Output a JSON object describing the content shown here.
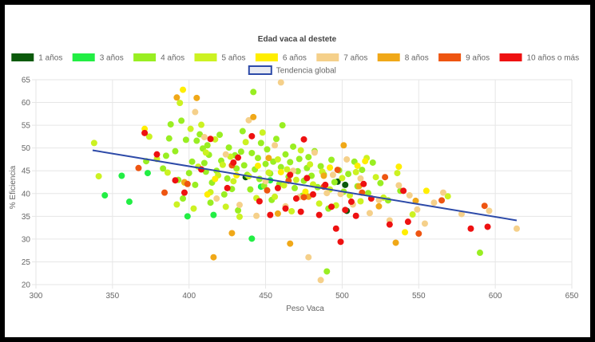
{
  "chart_data": {
    "type": "scatter",
    "title": "Edad vaca al destete",
    "xlabel": "Peso Vaca",
    "ylabel": "% Eficiencia",
    "xlim": [
      300,
      650
    ],
    "ylim": [
      20,
      65
    ],
    "xticks": [
      300,
      350,
      400,
      450,
      500,
      550,
      600,
      650
    ],
    "yticks": [
      20,
      25,
      30,
      35,
      40,
      45,
      50,
      55,
      60,
      65
    ],
    "grid": true,
    "legend_position": "top",
    "series": [
      {
        "name": "1 años",
        "color": "#0b5a0b",
        "points": [
          [
            497,
            42.6
          ],
          [
            502,
            41.9
          ],
          [
            437,
            43.6
          ],
          [
            503,
            36.2
          ]
        ]
      },
      {
        "name": "3 años",
        "color": "#22ee44",
        "points": [
          [
            345,
            39.6
          ],
          [
            356,
            43.9
          ],
          [
            361,
            38.2
          ],
          [
            373,
            44.5
          ],
          [
            399,
            35.0
          ],
          [
            416,
            35.3
          ],
          [
            441,
            30.1
          ],
          [
            447,
            41.5
          ],
          [
            453,
            42.9
          ]
        ]
      },
      {
        "name": "4 años",
        "color": "#99ee22",
        "points": [
          [
            372,
            47.1
          ],
          [
            383,
            45.5
          ],
          [
            385,
            48.3
          ],
          [
            387,
            52.1
          ],
          [
            388,
            55.2
          ],
          [
            391,
            49.3
          ],
          [
            393,
            43.0
          ],
          [
            395,
            56.0
          ],
          [
            396,
            38.9
          ],
          [
            398,
            51.8
          ],
          [
            400,
            44.5
          ],
          [
            402,
            47.0
          ],
          [
            404,
            41.9
          ],
          [
            405,
            51.6
          ],
          [
            407,
            53.0
          ],
          [
            409,
            49.9
          ],
          [
            410,
            46.7
          ],
          [
            411,
            44.8
          ],
          [
            412,
            50.6
          ],
          [
            413,
            48.5
          ],
          [
            414,
            38.0
          ],
          [
            415,
            42.4
          ],
          [
            418,
            45.0
          ],
          [
            420,
            52.9
          ],
          [
            421,
            47.2
          ],
          [
            423,
            39.8
          ],
          [
            425,
            43.3
          ],
          [
            426,
            50.1
          ],
          [
            428,
            41.0
          ],
          [
            430,
            48.4
          ],
          [
            431,
            45.5
          ],
          [
            432,
            36.3
          ],
          [
            434,
            49.2
          ],
          [
            435,
            53.7
          ],
          [
            436,
            46.2
          ],
          [
            438,
            44.1
          ],
          [
            440,
            40.9
          ],
          [
            441,
            48.9
          ],
          [
            442,
            62.3
          ],
          [
            443,
            45.3
          ],
          [
            445,
            47.8
          ],
          [
            446,
            43.2
          ],
          [
            447,
            51.1
          ],
          [
            449,
            41.7
          ],
          [
            450,
            46.5
          ],
          [
            451,
            49.7
          ],
          [
            453,
            44.4
          ],
          [
            454,
            38.6
          ],
          [
            455,
            47.0
          ],
          [
            457,
            52.0
          ],
          [
            459,
            42.1
          ],
          [
            460,
            45.8
          ],
          [
            461,
            55.0
          ],
          [
            463,
            48.6
          ],
          [
            465,
            43.7
          ],
          [
            466,
            46.9
          ],
          [
            468,
            50.3
          ],
          [
            469,
            41.2
          ],
          [
            471,
            44.9
          ],
          [
            472,
            47.6
          ],
          [
            474,
            39.5
          ],
          [
            475,
            42.8
          ],
          [
            477,
            45.6
          ],
          [
            478,
            48.0
          ],
          [
            480,
            43.9
          ],
          [
            482,
            49.3
          ],
          [
            484,
            41.4
          ],
          [
            486,
            46.0
          ],
          [
            488,
            44.2
          ],
          [
            490,
            22.9
          ],
          [
            491,
            36.7
          ],
          [
            493,
            47.4
          ],
          [
            495,
            42.5
          ],
          [
            498,
            45.1
          ],
          [
            501,
            40.4
          ],
          [
            504,
            44.3
          ],
          [
            508,
            47.0
          ],
          [
            510,
            41.6
          ],
          [
            513,
            45.2
          ],
          [
            517,
            40.1
          ],
          [
            520,
            46.8
          ],
          [
            525,
            42.3
          ],
          [
            530,
            38.5
          ],
          [
            538,
            40.6
          ],
          [
            590,
            27.0
          ]
        ]
      },
      {
        "name": "5 años",
        "color": "#ccf222",
        "points": [
          [
            338,
            51.1
          ],
          [
            341,
            43.8
          ],
          [
            374,
            52.5
          ],
          [
            379,
            47.6
          ],
          [
            386,
            44.6
          ],
          [
            392,
            37.6
          ],
          [
            394,
            59.9
          ],
          [
            397,
            42.4
          ],
          [
            401,
            54.2
          ],
          [
            403,
            36.7
          ],
          [
            406,
            45.9
          ],
          [
            408,
            55.1
          ],
          [
            411,
            49.0
          ],
          [
            414,
            40.3
          ],
          [
            417,
            51.9
          ],
          [
            419,
            44.0
          ],
          [
            422,
            46.3
          ],
          [
            424,
            37.1
          ],
          [
            427,
            48.1
          ],
          [
            429,
            42.7
          ],
          [
            433,
            34.9
          ],
          [
            437,
            51.3
          ],
          [
            439,
            43.8
          ],
          [
            444,
            39.0
          ],
          [
            448,
            53.4
          ],
          [
            452,
            44.6
          ],
          [
            456,
            39.3
          ],
          [
            458,
            47.5
          ],
          [
            462,
            41.8
          ],
          [
            464,
            45.3
          ],
          [
            467,
            36.1
          ],
          [
            470,
            43.0
          ],
          [
            473,
            49.5
          ],
          [
            476,
            39.8
          ],
          [
            479,
            46.4
          ],
          [
            481,
            42.0
          ],
          [
            485,
            37.8
          ],
          [
            487,
            44.8
          ],
          [
            492,
            40.9
          ],
          [
            496,
            37.4
          ],
          [
            500,
            43.4
          ],
          [
            505,
            39.6
          ],
          [
            509,
            44.7
          ],
          [
            512,
            38.3
          ],
          [
            516,
            47.8
          ],
          [
            522,
            43.6
          ],
          [
            527,
            39.1
          ],
          [
            536,
            44.5
          ],
          [
            546,
            35.4
          ],
          [
            569,
            39.4
          ]
        ]
      },
      {
        "name": "6 años",
        "color": "#ffee00",
        "points": [
          [
            371,
            54.2
          ],
          [
            396,
            62.8
          ],
          [
            412,
            39.8
          ],
          [
            417,
            43.2
          ],
          [
            431,
            44.0
          ],
          [
            445,
            46.1
          ],
          [
            460,
            44.7
          ],
          [
            476,
            40.4
          ],
          [
            492,
            45.7
          ],
          [
            510,
            46.1
          ],
          [
            515,
            47.1
          ],
          [
            537,
            45.9
          ],
          [
            541,
            31.5
          ],
          [
            555,
            40.6
          ]
        ]
      },
      {
        "name": "7 años",
        "color": "#f5d08a",
        "points": [
          [
            404,
            57.9
          ],
          [
            410,
            52.4
          ],
          [
            418,
            38.9
          ],
          [
            424,
            48.6
          ],
          [
            433,
            37.5
          ],
          [
            439,
            56.1
          ],
          [
            444,
            35.1
          ],
          [
            450,
            42.7
          ],
          [
            456,
            50.6
          ],
          [
            460,
            64.4
          ],
          [
            463,
            37.2
          ],
          [
            468,
            45.0
          ],
          [
            472,
            39.2
          ],
          [
            478,
            26.0
          ],
          [
            482,
            49.0
          ],
          [
            486,
            21.0
          ],
          [
            490,
            40.1
          ],
          [
            494,
            44.1
          ],
          [
            499,
            39.9
          ],
          [
            503,
            47.5
          ],
          [
            507,
            37.6
          ],
          [
            512,
            43.3
          ],
          [
            518,
            35.7
          ],
          [
            524,
            38.6
          ],
          [
            531,
            34.1
          ],
          [
            537,
            41.8
          ],
          [
            544,
            39.6
          ],
          [
            549,
            36.5
          ],
          [
            554,
            33.4
          ],
          [
            560,
            38.0
          ],
          [
            566,
            40.2
          ],
          [
            578,
            35.5
          ],
          [
            596,
            36.2
          ],
          [
            614,
            32.3
          ]
        ]
      },
      {
        "name": "8 años",
        "color": "#f0a818",
        "points": [
          [
            392,
            61.1
          ],
          [
            397,
            42.5
          ],
          [
            405,
            61.0
          ],
          [
            416,
            26.0
          ],
          [
            428,
            31.3
          ],
          [
            442,
            56.8
          ],
          [
            452,
            47.8
          ],
          [
            458,
            35.6
          ],
          [
            466,
            29.0
          ],
          [
            478,
            39.3
          ],
          [
            488,
            43.9
          ],
          [
            501,
            50.6
          ],
          [
            511,
            41.6
          ],
          [
            524,
            37.2
          ],
          [
            535,
            29.2
          ],
          [
            548,
            38.4
          ]
        ]
      },
      {
        "name": "9 años",
        "color": "#ee5511",
        "points": [
          [
            367,
            45.6
          ],
          [
            384,
            40.2
          ],
          [
            399,
            42.1
          ],
          [
            428,
            46.2
          ],
          [
            451,
            40.7
          ],
          [
            465,
            42.8
          ],
          [
            475,
            39.2
          ],
          [
            488,
            41.5
          ],
          [
            497,
            45.2
          ],
          [
            513,
            40.2
          ],
          [
            528,
            43.6
          ],
          [
            550,
            31.2
          ],
          [
            565,
            38.5
          ],
          [
            593,
            37.3
          ]
        ]
      },
      {
        "name": "10 años o más",
        "color": "#ee1111",
        "points": [
          [
            371,
            53.3
          ],
          [
            379,
            48.6
          ],
          [
            391,
            42.9
          ],
          [
            397,
            40.2
          ],
          [
            408,
            45.3
          ],
          [
            414,
            52.0
          ],
          [
            425,
            41.2
          ],
          [
            432,
            47.9
          ],
          [
            441,
            52.6
          ],
          [
            446,
            38.3
          ],
          [
            453,
            35.3
          ],
          [
            458,
            41.2
          ],
          [
            463,
            36.7
          ],
          [
            466,
            44.1
          ],
          [
            470,
            38.9
          ],
          [
            473,
            36.0
          ],
          [
            477,
            43.4
          ],
          [
            481,
            39.8
          ],
          [
            485,
            35.3
          ],
          [
            489,
            41.9
          ],
          [
            493,
            37.1
          ],
          [
            496,
            32.3
          ],
          [
            499,
            29.4
          ],
          [
            502,
            36.4
          ],
          [
            506,
            38.2
          ],
          [
            509,
            35.1
          ],
          [
            514,
            42.1
          ],
          [
            519,
            38.9
          ],
          [
            531,
            33.2
          ],
          [
            540,
            40.6
          ],
          [
            543,
            33.8
          ],
          [
            584,
            32.3
          ],
          [
            595,
            32.7
          ],
          [
            475,
            51.9
          ],
          [
            429,
            46.8
          ]
        ]
      }
    ],
    "trend": {
      "name": "Tendencia global",
      "color": "#2d4aa8",
      "points": [
        [
          337,
          49.5
        ],
        [
          614,
          34.1
        ]
      ]
    }
  }
}
